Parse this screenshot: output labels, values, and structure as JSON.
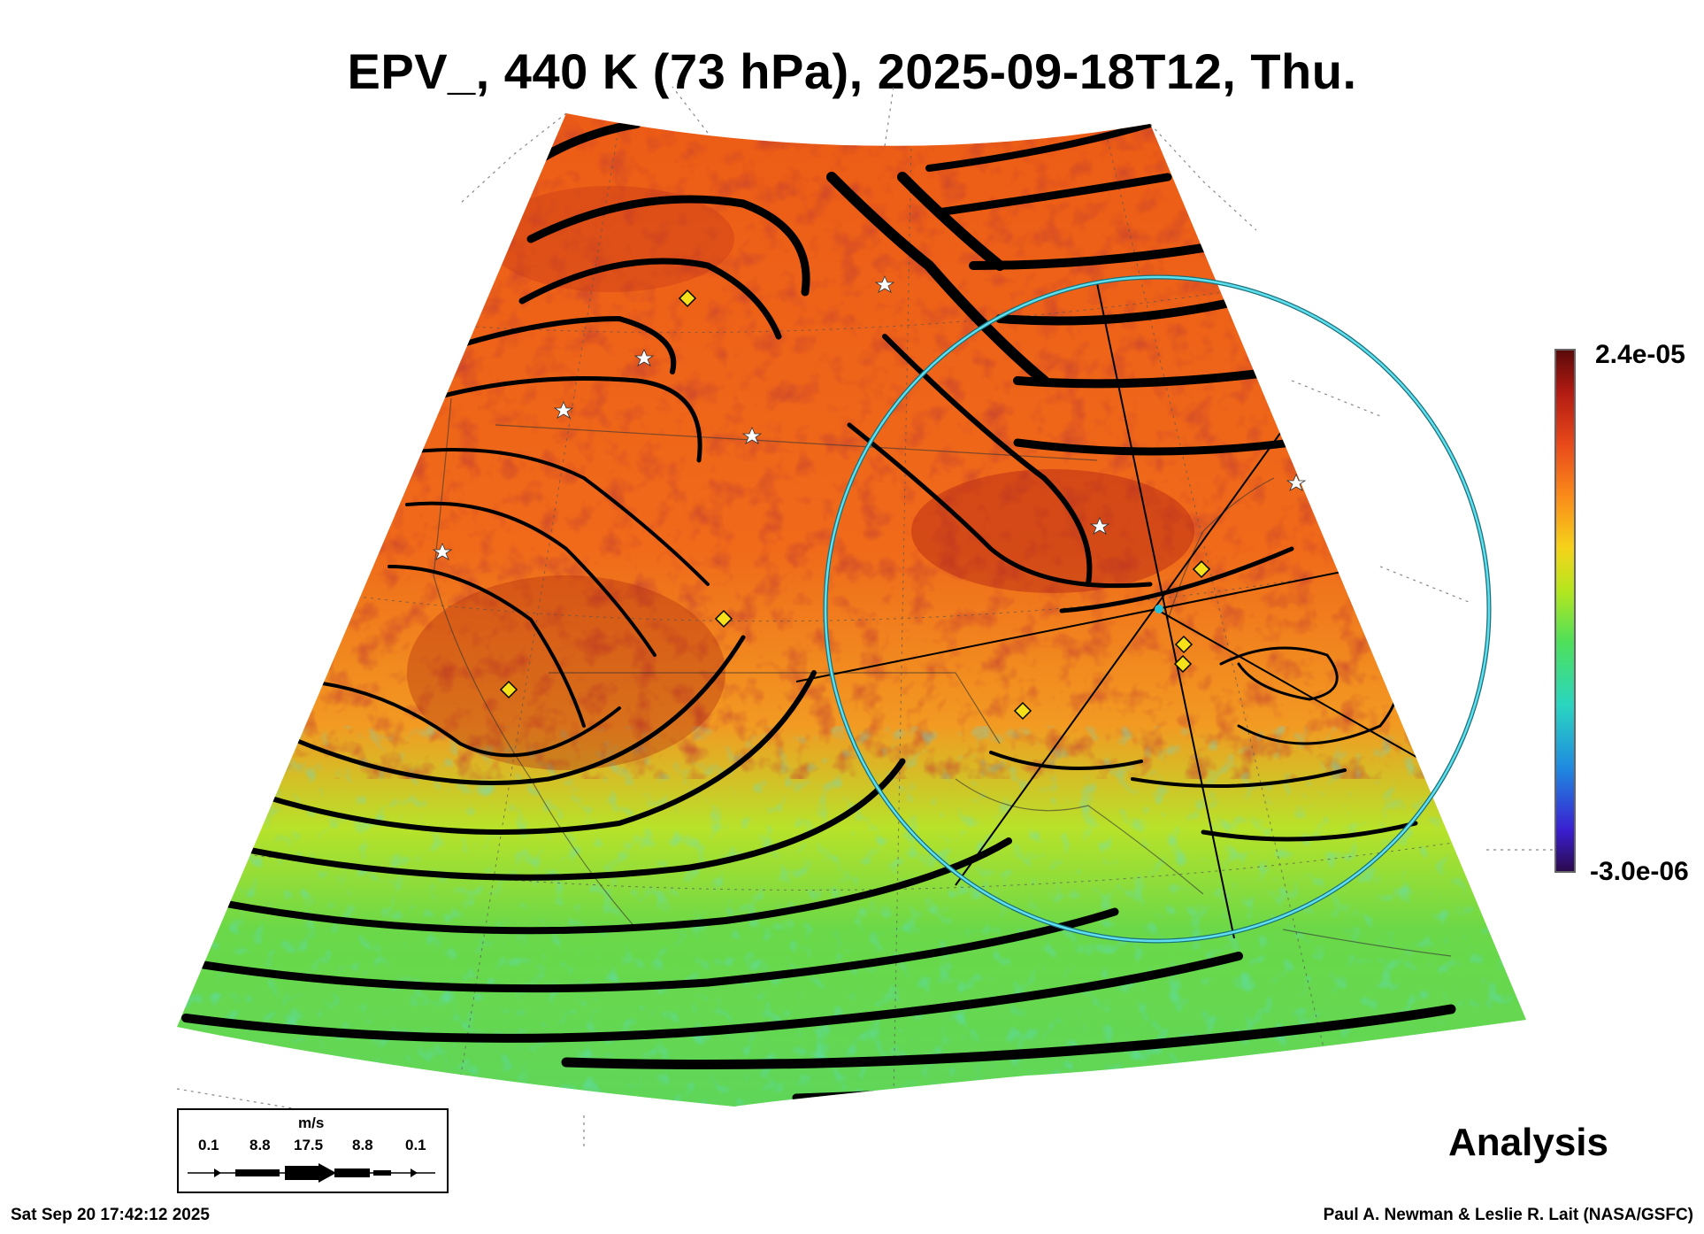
{
  "title": "EPV_, 440 K (73 hPa), 2025-09-18T12, Thu.",
  "colorbar": {
    "max_label": "2.4e-05",
    "min_label": "-3.0e-06",
    "colors": [
      "#2a0a4a",
      "#3a1fd0",
      "#1f8be0",
      "#2ad6c0",
      "#4ee05a",
      "#b6e61e",
      "#f5d31a",
      "#fb8a1a",
      "#e8481a",
      "#b01a12",
      "#5a0a0a"
    ]
  },
  "legend": {
    "unit": "m/s",
    "ticks": [
      "0.1",
      "8.8",
      "17.5",
      "8.8",
      "0.1"
    ]
  },
  "stage_label": "Analysis",
  "footer": {
    "timestamp": "Sat Sep 20 17:42:12 2025",
    "credit": "Paul A. Newman & Leslie R. Lait (NASA/GSFC)"
  },
  "map": {
    "field": "EPV_",
    "range_ring_color": "#29c0d6",
    "high_color": "#e85a18",
    "low_color": "#7ad83a",
    "marker_colors": {
      "star": "#ffffff",
      "diamond": "#f5e01a"
    }
  }
}
